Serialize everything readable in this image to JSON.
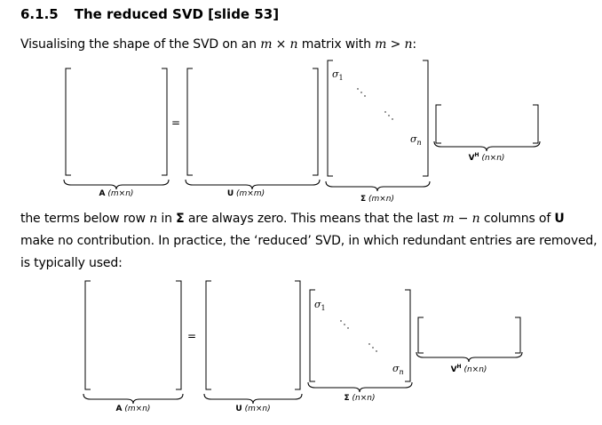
{
  "section": {
    "number": "6.1.5",
    "title": "The reduced SVD [slide 53]"
  },
  "intro": {
    "text_a": "Visualising the shape of the SVD on an ",
    "m": "m",
    "times": " × ",
    "n": "n",
    "text_b": " matrix with ",
    "cond_m": "m",
    "gt": " > ",
    "cond_n": "n",
    "text_c": ":"
  },
  "full_svd": {
    "equals": "=",
    "A_label": {
      "sym": "A",
      "dims": "(m×n)"
    },
    "U_label": {
      "sym": "U",
      "dims": "(m×m)"
    },
    "S_label": {
      "sym": "Σ",
      "dims": "(m×n)"
    },
    "V_label": {
      "sym": "V",
      "sup": "H",
      "dims": "(n×n)"
    },
    "sigma_first": "σ",
    "sigma_first_sub": "1",
    "sigma_last": "σ",
    "sigma_last_sub": "n"
  },
  "explain": {
    "l1_a": "the terms below row ",
    "l1_n": "n",
    "l1_b": " in ",
    "l1_sigma": "Σ",
    "l1_c": " are always zero. This means that the last ",
    "l1_m": "m",
    "l1_minus": " − ",
    "l1_n2": "n",
    "l1_d": " columns of ",
    "l1_U": "U",
    "l2": "make no contribution. In practice, the ‘reduced’ SVD, in which redundant entries are removed,",
    "l3": "is typically used:"
  },
  "reduced_svd": {
    "equals": "=",
    "A_label": {
      "sym": "A",
      "dims": "(m×n)"
    },
    "U_label": {
      "sym": "U",
      "dims": "(m×n)"
    },
    "S_label": {
      "sym": "Σ",
      "dims": "(n×n)"
    },
    "V_label": {
      "sym": "V",
      "sup": "H",
      "dims": "(n×n)"
    },
    "sigma_first": "σ",
    "sigma_first_sub": "1",
    "sigma_last": "σ",
    "sigma_last_sub": "n"
  }
}
